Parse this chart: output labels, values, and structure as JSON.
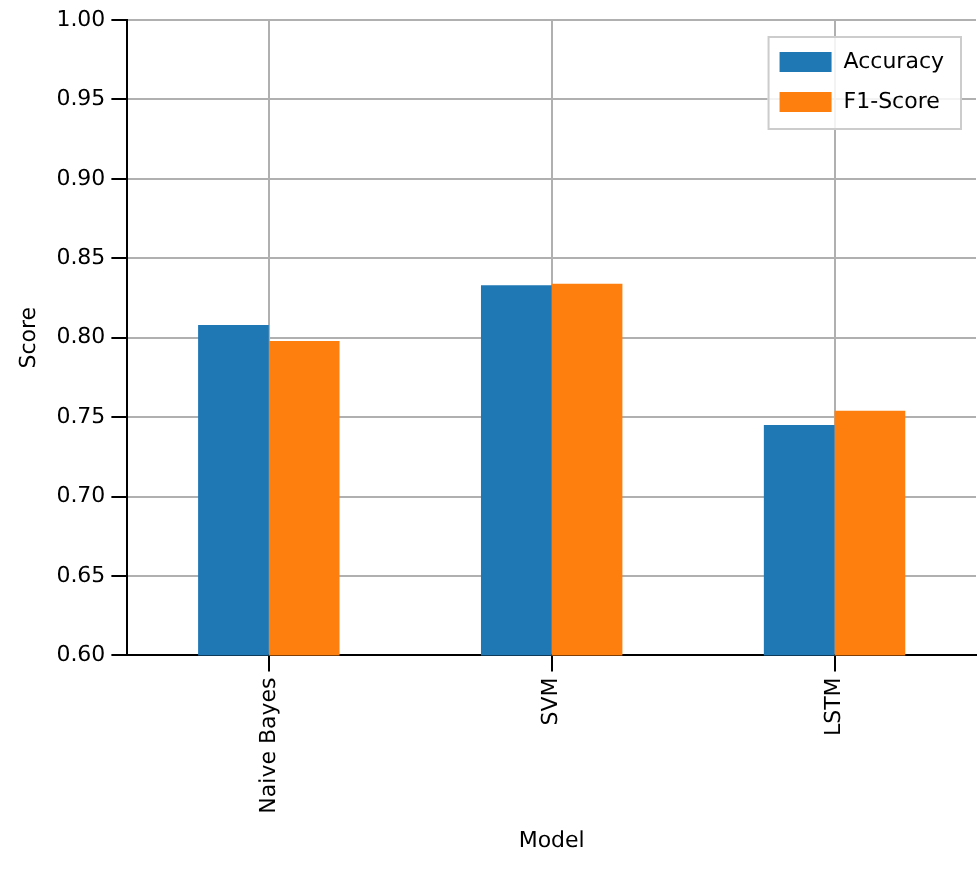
{
  "chart_data": {
    "type": "bar",
    "xlabel": "Model",
    "ylabel": "Score",
    "categories": [
      "Naive Bayes",
      "SVM",
      "LSTM"
    ],
    "series": [
      {
        "name": "Accuracy",
        "color": "#1f77b4",
        "values": [
          0.808,
          0.833,
          0.745
        ]
      },
      {
        "name": "F1-Score",
        "color": "#ff7f0e",
        "values": [
          0.798,
          0.834,
          0.754
        ]
      }
    ],
    "ylim": [
      0.6,
      1.0
    ],
    "yticks": [
      {
        "value": 0.6,
        "label": "0.60"
      },
      0.65,
      {
        "value": 0.7,
        "label": "0.70"
      },
      0.75,
      {
        "value": 0.8,
        "label": "0.80"
      },
      0.85,
      {
        "value": 0.9,
        "label": "0.90"
      },
      0.95,
      {
        "value": 1.0,
        "label": "1.00"
      }
    ],
    "grid": true,
    "legend": "top right"
  }
}
